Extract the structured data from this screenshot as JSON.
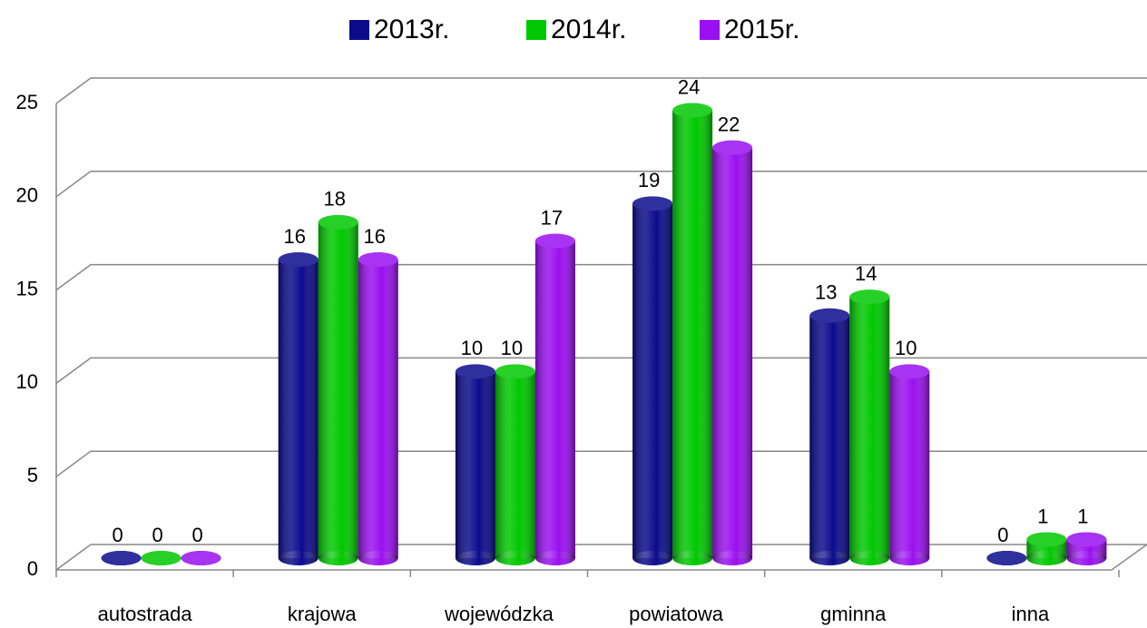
{
  "chart_data": {
    "type": "bar",
    "categories": [
      "autostrada",
      "krajowa",
      "wojewódzka",
      "powiatowa",
      "gminna",
      "inna"
    ],
    "series": [
      {
        "name": "2013r.",
        "color": "#0b0b8c",
        "values": [
          0,
          16,
          10,
          19,
          13,
          0
        ]
      },
      {
        "name": "2014r.",
        "color": "#00c800",
        "values": [
          0,
          18,
          10,
          24,
          14,
          1
        ]
      },
      {
        "name": "2015r.",
        "color": "#9a10f0",
        "values": [
          0,
          16,
          17,
          22,
          10,
          1
        ]
      }
    ],
    "ylim": [
      0,
      25
    ],
    "yticks": [
      0,
      5,
      10,
      15,
      20,
      25
    ],
    "grid": true,
    "legend": "top"
  }
}
